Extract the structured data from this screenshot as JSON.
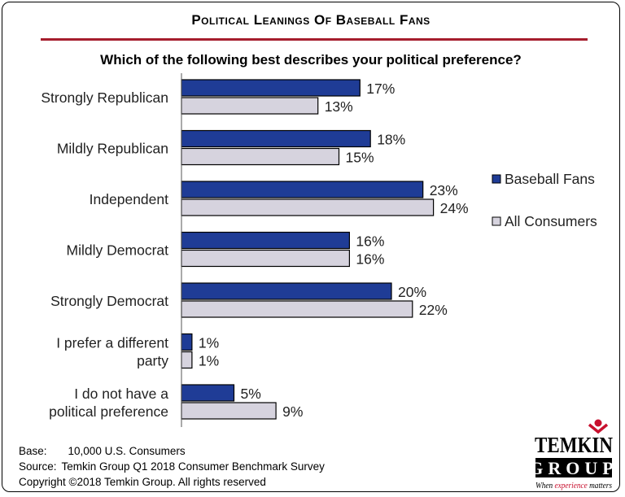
{
  "title": "Political Leanings Of Baseball Fans",
  "subtitle": "Which of the following best describes your political preference?",
  "chart_data": {
    "type": "bar",
    "orientation": "horizontal",
    "title": "Political Leanings Of Baseball Fans",
    "subtitle": "Which of the following best describes your political preference?",
    "categories": [
      [
        "Strongly Republican"
      ],
      [
        "Mildly Republican"
      ],
      [
        "Independent"
      ],
      [
        "Mildly Democrat"
      ],
      [
        "Strongly Democrat"
      ],
      [
        "I prefer a different",
        "party"
      ],
      [
        "I do not have a",
        "political preference"
      ]
    ],
    "series": [
      {
        "name": "Baseball Fans",
        "color": "#1f3c96",
        "values": [
          17,
          18,
          23,
          16,
          20,
          1,
          5
        ]
      },
      {
        "name": "All Consumers",
        "color": "#d6d3de",
        "values": [
          13,
          15,
          24,
          16,
          22,
          1,
          9
        ]
      }
    ],
    "value_suffix": "%",
    "xlim": [
      0,
      25
    ],
    "grid": false,
    "legend": "right"
  },
  "footer": {
    "base_label": "Base:",
    "base_value": "10,000 U.S. Consumers",
    "source_label": "Source:",
    "source_value": "Temkin Group Q1 2018 Consumer Benchmark Survey",
    "copyright": "Copyright ©2018 Temkin Group. All rights reserved"
  },
  "logo": {
    "line1": "TEMKIN",
    "line2": "GROUP",
    "tagline_pre": "When ",
    "tagline_mid": "experience",
    "tagline_post": " matters",
    "accent": "#c8102e"
  }
}
